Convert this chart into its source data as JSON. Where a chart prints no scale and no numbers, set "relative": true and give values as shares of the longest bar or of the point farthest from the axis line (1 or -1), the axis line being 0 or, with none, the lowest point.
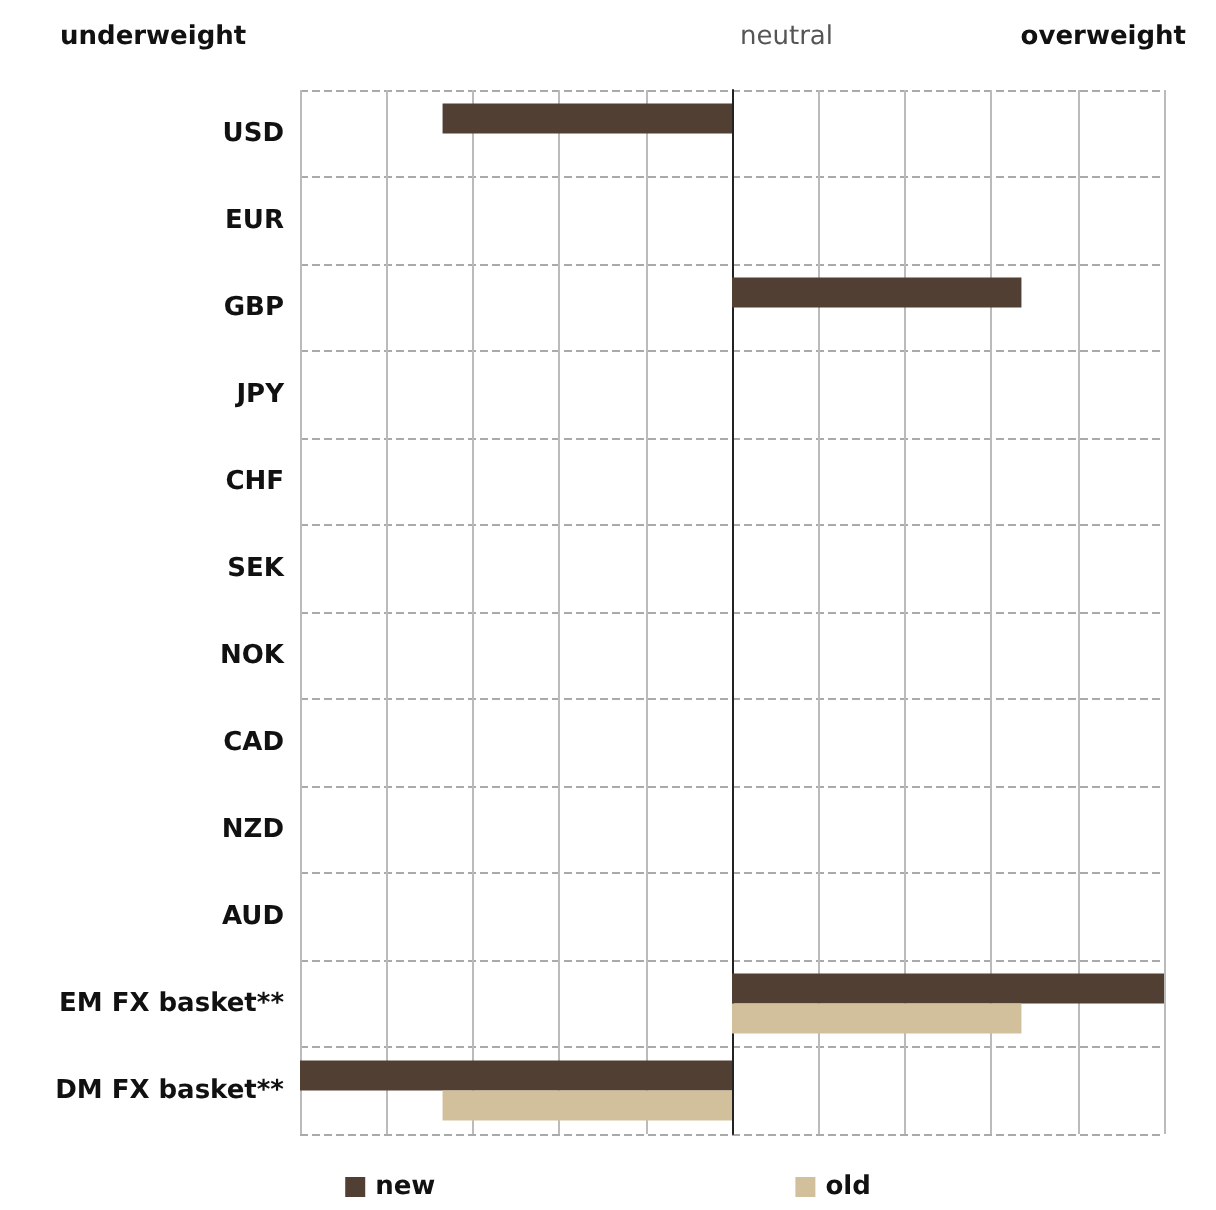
{
  "chart_data": {
    "type": "bar",
    "orientation": "horizontal",
    "relative": true,
    "categories": [
      "USD",
      "EUR",
      "GBP",
      "JPY",
      "CHF",
      "SEK",
      "NOK",
      "CAD",
      "NZD",
      "AUD",
      "EM FX basket**",
      "DM FX basket**"
    ],
    "series": [
      {
        "name": "new",
        "color": "#523f33",
        "values": [
          -0.67,
          0,
          0.67,
          0,
          0,
          0,
          0,
          0,
          0,
          0,
          1,
          -1
        ]
      },
      {
        "name": "old",
        "color": "#d2bf9b",
        "values": [
          0,
          0,
          0,
          0,
          0,
          0,
          0,
          0,
          0,
          0,
          0.67,
          -0.67
        ]
      }
    ],
    "annotations": [
      "underweight",
      "neutral",
      "overweight"
    ],
    "grid": true,
    "legend": "bottom"
  }
}
